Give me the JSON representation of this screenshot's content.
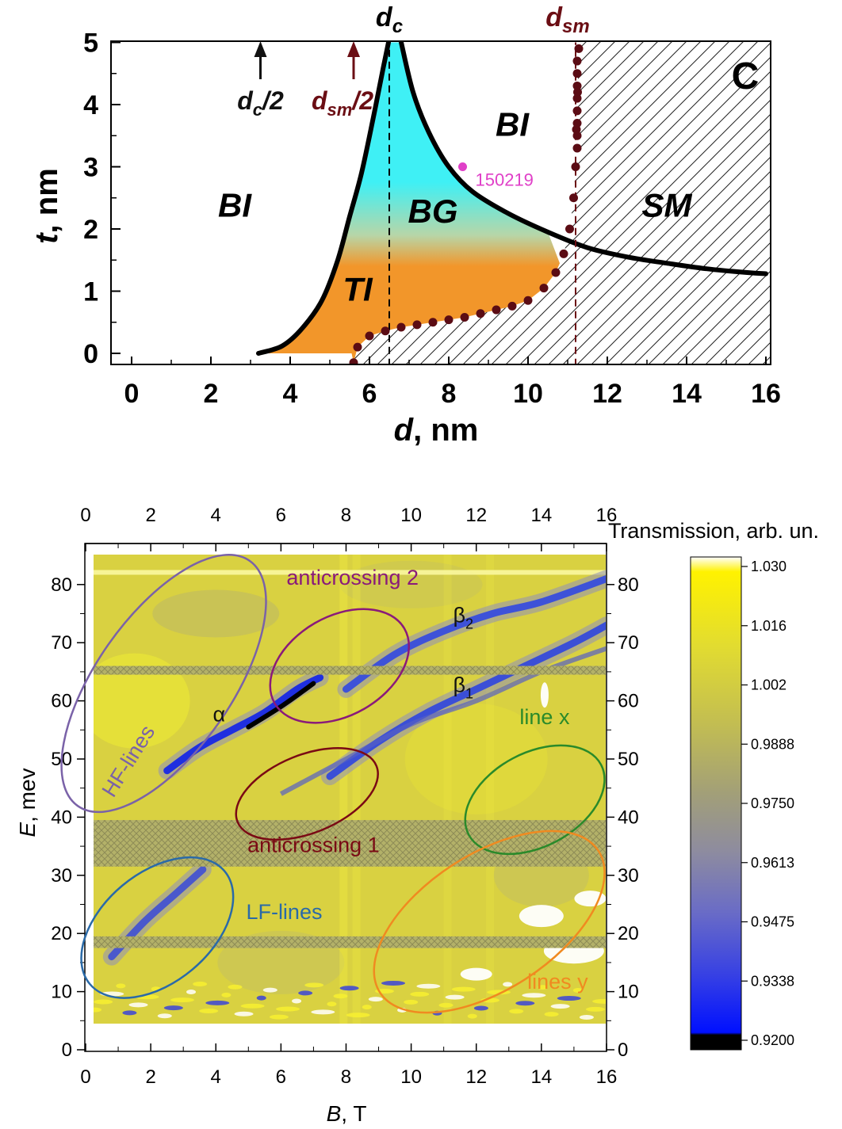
{
  "chart_data": [
    {
      "type": "phase-diagram",
      "xlabel_var": "d",
      "xlabel_unit": ", nm",
      "ylabel_var": "t",
      "ylabel_unit": ", nm",
      "xlim": [
        -0.5,
        16
      ],
      "ylim": [
        -0.2,
        5
      ],
      "x_ticks": [
        "0",
        "2",
        "4",
        "6",
        "8",
        "10",
        "12",
        "14",
        "16"
      ],
      "y_ticks": [
        "0",
        "1",
        "2",
        "3",
        "4",
        "5"
      ],
      "panel_label": "C",
      "regions": [
        {
          "label": "BI",
          "x": 2.6,
          "y": 2.2,
          "color": "#ffffff"
        },
        {
          "label": "BI",
          "x": 9.6,
          "y": 3.5,
          "color": "#ffffff"
        },
        {
          "label": "BG",
          "x": 7.6,
          "y": 2.1,
          "color": "#3ff0f5"
        },
        {
          "label": "TI",
          "x": 5.7,
          "y": 0.85,
          "color": "#f2962a"
        },
        {
          "label": "SM",
          "x": 13.5,
          "y": 2.2,
          "color": "hatched"
        }
      ],
      "vertical_lines": [
        {
          "label_main": "d",
          "label_sub": "c",
          "x": 6.5
        },
        {
          "label_main": "d",
          "label_sub": "sm",
          "x": 11.2
        }
      ],
      "arrows": [
        {
          "label_main": "d",
          "label_sub": "c",
          "label_tail": "/2",
          "x": 3.25,
          "color": "#111111"
        },
        {
          "label_main": "d",
          "label_sub": "sm",
          "label_tail": "/2",
          "x": 5.6,
          "color": "#6b0e14"
        }
      ],
      "sample_point": {
        "label": "150219",
        "x": 8.35,
        "y": 3.0,
        "color": "#e040c8"
      },
      "boundary_upper": [
        [
          3.2,
          0.0
        ],
        [
          3.8,
          0.12
        ],
        [
          4.3,
          0.4
        ],
        [
          4.8,
          0.85
        ],
        [
          5.2,
          1.5
        ],
        [
          5.5,
          2.2
        ],
        [
          5.8,
          2.9
        ],
        [
          6.1,
          3.8
        ],
        [
          6.35,
          4.6
        ],
        [
          6.48,
          5.0
        ]
      ],
      "boundary_right": [
        [
          6.8,
          5.0
        ],
        [
          7.1,
          4.2
        ],
        [
          7.5,
          3.55
        ],
        [
          8.0,
          3.0
        ],
        [
          8.6,
          2.6
        ],
        [
          9.5,
          2.25
        ],
        [
          10.5,
          1.95
        ],
        [
          11.5,
          1.7
        ],
        [
          12.5,
          1.55
        ],
        [
          13.5,
          1.45
        ],
        [
          14.5,
          1.36
        ],
        [
          15.5,
          1.3
        ],
        [
          16.0,
          1.28
        ]
      ],
      "dotted_lower": [
        [
          5.6,
          -0.15
        ],
        [
          5.7,
          0.1
        ],
        [
          6.0,
          0.28
        ],
        [
          6.4,
          0.36
        ],
        [
          6.8,
          0.42
        ],
        [
          7.2,
          0.46
        ],
        [
          7.6,
          0.5
        ],
        [
          8.0,
          0.54
        ],
        [
          8.4,
          0.58
        ],
        [
          8.8,
          0.64
        ],
        [
          9.2,
          0.7
        ],
        [
          9.6,
          0.76
        ],
        [
          10.0,
          0.85
        ],
        [
          10.4,
          1.05
        ],
        [
          10.7,
          1.3
        ],
        [
          10.9,
          1.6
        ],
        [
          11.05,
          2.0
        ],
        [
          11.15,
          2.5
        ],
        [
          11.2,
          3.0
        ],
        [
          11.22,
          3.6
        ],
        [
          11.25,
          4.2
        ],
        [
          11.28,
          4.9
        ]
      ]
    },
    {
      "type": "heatmap",
      "xlabel_var": "B",
      "xlabel_unit": ", T",
      "ylabel_var": "E",
      "ylabel_unit": ", mev",
      "xlim": [
        0,
        16
      ],
      "ylim": [
        0,
        85
      ],
      "x_ticks": [
        "0",
        "2",
        "4",
        "6",
        "8",
        "10",
        "12",
        "14",
        "16"
      ],
      "y_ticks": [
        "0",
        "10",
        "20",
        "30",
        "40",
        "50",
        "60",
        "70",
        "80"
      ],
      "colorbar": {
        "title": "Transmission, arb. un.",
        "ticks": [
          "1.030",
          "1.016",
          "1.002",
          "0.9888",
          "0.9750",
          "0.9613",
          "0.9475",
          "0.9338",
          "0.9200"
        ],
        "colors": [
          "#ffffff",
          "#fff200",
          "#d8d43a",
          "#b8b25a",
          "#9e9a82",
          "#8e8aa0",
          "#6f70c2",
          "#3a44e0",
          "#0010ff",
          "#000000"
        ]
      },
      "lines": [
        {
          "name": "α",
          "points": [
            [
              2.5,
              48
            ],
            [
              3.5,
              52
            ],
            [
              4.5,
              55
            ],
            [
              5.5,
              58
            ],
            [
              6.5,
              62
            ],
            [
              7.2,
              64
            ]
          ]
        },
        {
          "name": "β2",
          "points": [
            [
              8.0,
              62
            ],
            [
              9.5,
              68
            ],
            [
              11,
              72
            ],
            [
              12.5,
              75
            ],
            [
              14,
              77
            ],
            [
              16,
              81
            ]
          ]
        },
        {
          "name": "β1",
          "points": [
            [
              7.5,
              47
            ],
            [
              9,
              53
            ],
            [
              10.5,
              58
            ],
            [
              12,
              62
            ],
            [
              13.5,
              66
            ],
            [
              15,
              70
            ],
            [
              16,
              73
            ]
          ]
        },
        {
          "name": "LF",
          "points": [
            [
              0.8,
              16
            ],
            [
              1.8,
              22
            ],
            [
              2.8,
              27
            ],
            [
              3.6,
              31
            ]
          ]
        }
      ],
      "annotations": [
        {
          "text": "anticrossing 2",
          "color": "#8a1a7a",
          "x": 8.2,
          "y": 80
        },
        {
          "text": "anticrossing 1",
          "color": "#7a0a14",
          "x": 7.0,
          "y": 34
        },
        {
          "text": "HF-lines",
          "color": "#7a62a8",
          "x": 1.5,
          "y": 49
        },
        {
          "text": "LF-lines",
          "color": "#2a6aa8",
          "x": 6.1,
          "y": 22.5
        },
        {
          "text": "line x",
          "color": "#2a8a2a",
          "x": 14.1,
          "y": 56
        },
        {
          "text": "lines y",
          "color": "#f08a20",
          "x": 14.5,
          "y": 10.5
        },
        {
          "text": "α",
          "color": "#111111",
          "x": 4.1,
          "y": 56.5
        },
        {
          "text": "β",
          "sub": "2",
          "color": "#111111",
          "x": 11.6,
          "y": 73.5
        },
        {
          "text": "β",
          "sub": "1",
          "color": "#111111",
          "x": 11.6,
          "y": 61.5
        }
      ],
      "ellipses": [
        {
          "name": "HF",
          "cx": 2.4,
          "cy": 63,
          "rx": 4.6,
          "ry": 1.3,
          "angle_deg": -55,
          "color": "#7a62a8"
        },
        {
          "name": "anticrossing 2",
          "cx": 7.8,
          "cy": 66,
          "rx": 2.3,
          "ry": 0.95,
          "angle_deg": -30,
          "color": "#8a1a7a"
        },
        {
          "name": "anticrossing 1",
          "cx": 6.8,
          "cy": 44,
          "rx": 2.3,
          "ry": 0.75,
          "angle_deg": -22,
          "color": "#7a0a14"
        },
        {
          "name": "LF",
          "cx": 2.2,
          "cy": 21,
          "rx": 2.7,
          "ry": 1.05,
          "angle_deg": -40,
          "color": "#2a6aa8"
        },
        {
          "name": "line x",
          "cx": 13.8,
          "cy": 43,
          "rx": 2.3,
          "ry": 0.9,
          "angle_deg": -28,
          "color": "#2a8a2a"
        },
        {
          "name": "lines y",
          "cx": 12.4,
          "cy": 22,
          "rx": 4.0,
          "ry": 1.3,
          "angle_deg": -33,
          "color": "#f08a20"
        }
      ],
      "hatched_bands": [
        [
          64.5,
          66.0
        ],
        [
          31.5,
          39.5
        ],
        [
          17.5,
          19.5
        ]
      ]
    }
  ]
}
